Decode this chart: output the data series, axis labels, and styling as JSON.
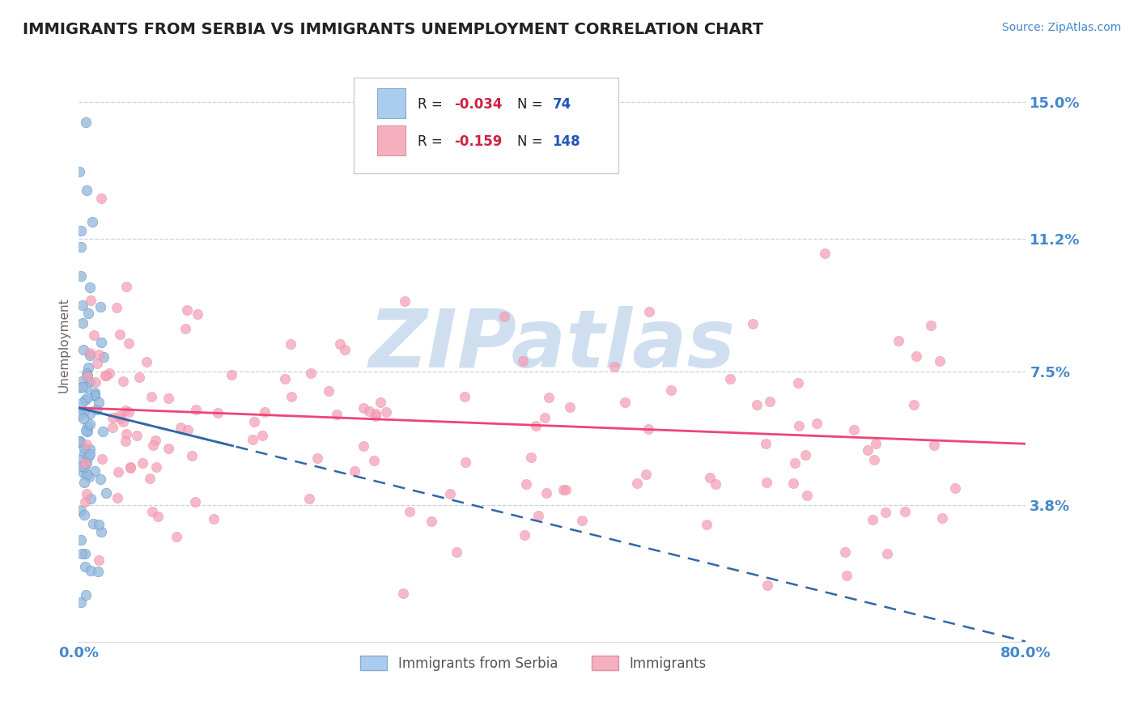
{
  "title": "IMMIGRANTS FROM SERBIA VS IMMIGRANTS UNEMPLOYMENT CORRELATION CHART",
  "source_text": "Source: ZipAtlas.com",
  "ylabel": "Unemployment",
  "x_min": 0.0,
  "x_max": 0.8,
  "y_min": 0.0,
  "y_max": 0.165,
  "y_ticks": [
    0.038,
    0.075,
    0.112,
    0.15
  ],
  "y_tick_labels": [
    "3.8%",
    "7.5%",
    "11.2%",
    "15.0%"
  ],
  "x_ticks": [
    0.0,
    0.1,
    0.2,
    0.3,
    0.4,
    0.5,
    0.6,
    0.7,
    0.8
  ],
  "x_tick_labels": [
    "0.0%",
    "",
    "",
    "",
    "",
    "",
    "",
    "",
    "80.0%"
  ],
  "scatter_blue_color": "#99bbdd",
  "scatter_pink_color": "#f5a0b5",
  "trend_blue_color": "#3366aa",
  "trend_pink_color": "#ee4477",
  "watermark_color": "#d0dff0",
  "background_color": "#ffffff",
  "grid_color": "#c8d0dc",
  "title_color": "#222222",
  "tick_color": "#4488cc",
  "n_blue": 74,
  "n_pink": 148,
  "blue_trend_x0": 0.0,
  "blue_trend_y0": 0.065,
  "blue_trend_x1": 0.8,
  "blue_trend_y1": 0.0,
  "pink_trend_x0": 0.0,
  "pink_trend_y0": 0.065,
  "pink_trend_x1": 0.8,
  "pink_trend_y1": 0.055
}
